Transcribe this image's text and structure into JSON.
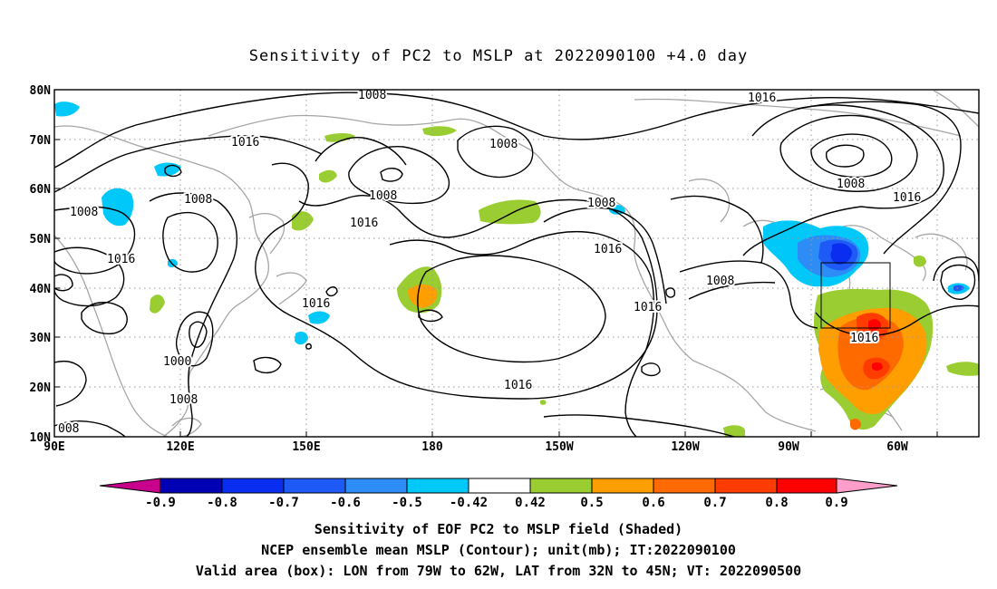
{
  "title": "Sensitivity of PC2 to MSLP at 2022090100 +4.0 day",
  "axes": {
    "lon_ticks": [
      "90E",
      "120E",
      "150E",
      "180",
      "150W",
      "120W",
      "90W",
      "60W"
    ],
    "lat_ticks": [
      "80N",
      "70N",
      "60N",
      "50N",
      "40N",
      "30N",
      "20N",
      "10N"
    ],
    "lon_range_deg_east": [
      90,
      310
    ],
    "lat_range_deg_north": [
      10,
      80
    ],
    "grid": true
  },
  "contour_labels": [
    "1008",
    "1008",
    "1016",
    "1008",
    "1008",
    "1016",
    "1008",
    "1016",
    "1008",
    "1016",
    "1016",
    "1016",
    "1008",
    "1008",
    "1016",
    "1016",
    "1000",
    "1008",
    "008",
    "1016"
  ],
  "colorbar": {
    "labels": [
      "-0.9",
      "-0.8",
      "-0.7",
      "-0.6",
      "-0.5",
      "-0.42",
      "0.42",
      "0.5",
      "0.6",
      "0.7",
      "0.8",
      "0.9"
    ],
    "colors": [
      "#0000b4",
      "#0a2ef0",
      "#1e5af5",
      "#2e8cf6",
      "#00c8f8",
      "#ffffff",
      "#9acd32",
      "#ff9e00",
      "#ff6a00",
      "#ff3c00",
      "#ff0000"
    ],
    "left_arrow_color": "#c8008c",
    "right_arrow_color": "#ff9ec8"
  },
  "valid_box": {
    "lon_w": 79,
    "lon_e": 62,
    "lat_s": 32,
    "lat_n": 45
  },
  "footer": {
    "line1": "Sensitivity of EOF PC2 to MSLP field (Shaded)",
    "line2": "NCEP ensemble mean MSLP (Contour); unit(mb); IT:2022090100",
    "line3": "Valid area (box): LON from 79W to 62W, LAT from 32N to 45N; VT: 2022090500"
  }
}
